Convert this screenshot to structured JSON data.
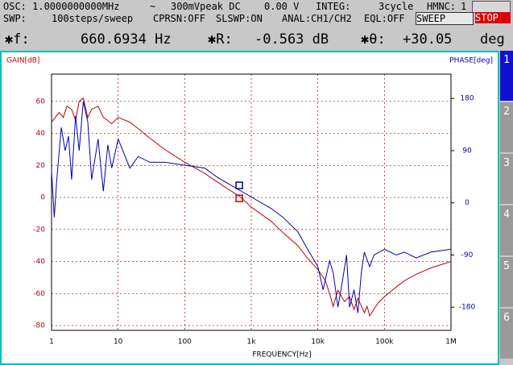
{
  "header": {
    "line1": [
      "OSC: 1.0000000000MHz",
      "~",
      "300mVpeak DC",
      "0.00 V",
      "INTEG:",
      "3cycle",
      "HMNC:",
      "1"
    ],
    "line2": [
      "SWP:",
      "100steps/sweep",
      "CPRSN:OFF",
      "SLSWP:ON",
      "ANAL:CH1/CH2",
      "EQL:OFF"
    ],
    "buttons": [
      "SWEEP",
      "STOP"
    ]
  },
  "readout": [
    "✱f:",
    "660.6934 Hz",
    "✱R:",
    "-0.563 dB",
    "✱θ:",
    "+30.05",
    "deg"
  ],
  "tabs": [
    "1",
    "2",
    "3",
    "4",
    "5",
    "6"
  ],
  "chart_data": {
    "type": "line",
    "y_label": "GAIN[dB]",
    "y2_label": "PHASE[deg]",
    "x_label": "FREQUENCY[Hz]",
    "x_log": true,
    "grid": true,
    "xlim": [
      1,
      1000000
    ],
    "xticks": [
      1,
      10,
      100,
      {
        "value": 1000,
        "label": "1k"
      },
      {
        "value": 10000,
        "label": "10k"
      },
      {
        "value": 100000,
        "label": "100k"
      },
      {
        "value": 1000000,
        "label": "1M"
      }
    ],
    "ylim": [
      -83,
      77
    ],
    "yticks": [
      60,
      40,
      20,
      0,
      -20,
      -40,
      -60,
      -80
    ],
    "y2lim": [
      -220,
      222
    ],
    "y2ticks": [
      180,
      90,
      0,
      -90,
      -180
    ],
    "series": [
      {
        "name": "GAIN",
        "color": "#c00000",
        "x": [
          1,
          1.3,
          1.5,
          1.7,
          2,
          2.3,
          2.6,
          3,
          3.5,
          4,
          5,
          6,
          7,
          8,
          10,
          15,
          20,
          30,
          50,
          100,
          200,
          300,
          500,
          700,
          1000,
          2000,
          3000,
          5000,
          7000,
          10000,
          13000,
          15000,
          17000,
          20000,
          25000,
          30000,
          35000,
          40000,
          50000,
          55000,
          60000,
          80000,
          100000,
          150000,
          200000,
          300000,
          500000,
          1000000
        ],
        "values": [
          47,
          53,
          50,
          57,
          55,
          48,
          60,
          62,
          50,
          55,
          57,
          50,
          48,
          46,
          50,
          47,
          43,
          37,
          30,
          22,
          15,
          10,
          4,
          0,
          -6,
          -15,
          -22,
          -30,
          -38,
          -45,
          -52,
          -60,
          -68,
          -58,
          -65,
          -62,
          -70,
          -63,
          -72,
          -68,
          -74,
          -66,
          -62,
          -56,
          -52,
          -48,
          -44,
          -40
        ]
      },
      {
        "name": "PHASE",
        "color": "#0000b0",
        "axis": "y2",
        "x": [
          1,
          1.1,
          1.2,
          1.4,
          1.6,
          1.8,
          2,
          2.3,
          2.6,
          3,
          3.5,
          4,
          5,
          6,
          7,
          8,
          10,
          15,
          20,
          30,
          50,
          100,
          200,
          300,
          500,
          1000,
          2000,
          3000,
          5000,
          7000,
          10000,
          12000,
          15000,
          17000,
          20000,
          23000,
          27000,
          30000,
          35000,
          40000,
          45000,
          50000,
          60000,
          70000,
          100000,
          150000,
          200000,
          300000,
          500000,
          1000000
        ],
        "values": [
          55,
          -25,
          40,
          130,
          90,
          115,
          40,
          150,
          90,
          175,
          140,
          40,
          110,
          20,
          100,
          60,
          110,
          60,
          80,
          70,
          70,
          65,
          60,
          45,
          30,
          10,
          -10,
          -25,
          -50,
          -80,
          -110,
          -150,
          -100,
          -120,
          -180,
          -140,
          -90,
          -180,
          -150,
          -190,
          -120,
          -85,
          -110,
          -90,
          -80,
          -90,
          -85,
          -95,
          -85,
          -80
        ]
      }
    ],
    "marker": {
      "x": 660.6934,
      "gain": -0.563,
      "phase": 30.05
    }
  }
}
